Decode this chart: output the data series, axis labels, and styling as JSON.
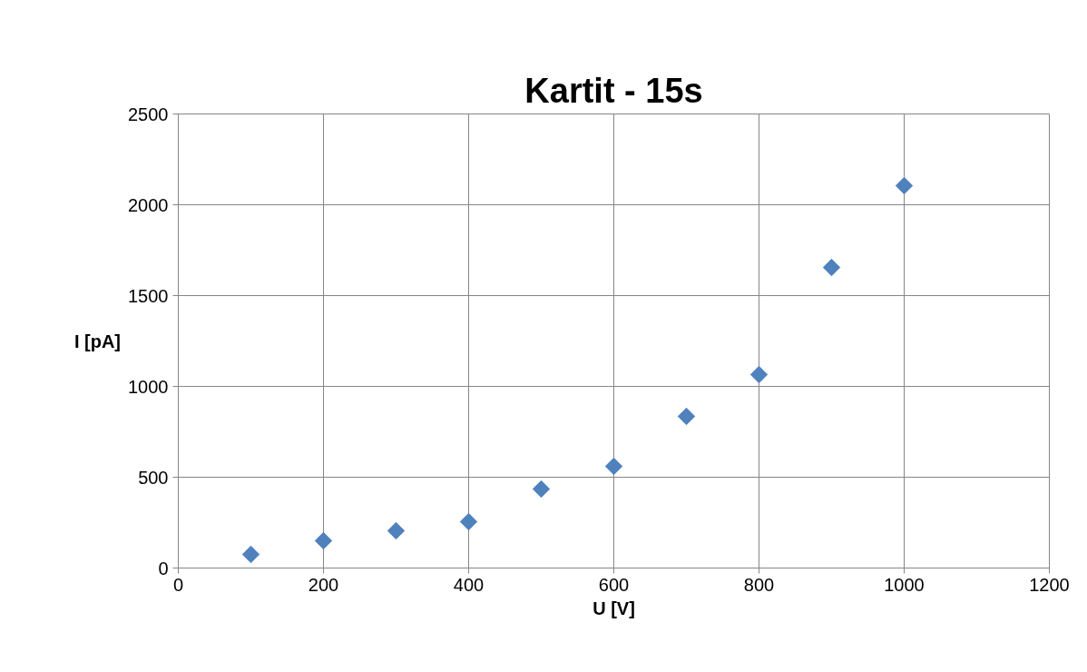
{
  "chart_data": {
    "type": "scatter",
    "title": "Kartit - 15s",
    "xlabel": "U [V]",
    "ylabel": "I [pA]",
    "x": [
      100,
      200,
      300,
      400,
      500,
      600,
      700,
      800,
      900,
      1000
    ],
    "series": [
      {
        "color": "#4f81bd",
        "values": [
          75,
          150,
          205,
          255,
          435,
          560,
          835,
          1065,
          1655,
          2105
        ]
      }
    ],
    "xlim": [
      0,
      1200
    ],
    "xticks": [
      0,
      200,
      400,
      600,
      800,
      1000,
      1200
    ],
    "ylim": [
      0,
      2500
    ],
    "yticks": [
      0,
      500,
      1000,
      1500,
      2000,
      2500
    ],
    "grid": true,
    "marker": "diamond"
  }
}
